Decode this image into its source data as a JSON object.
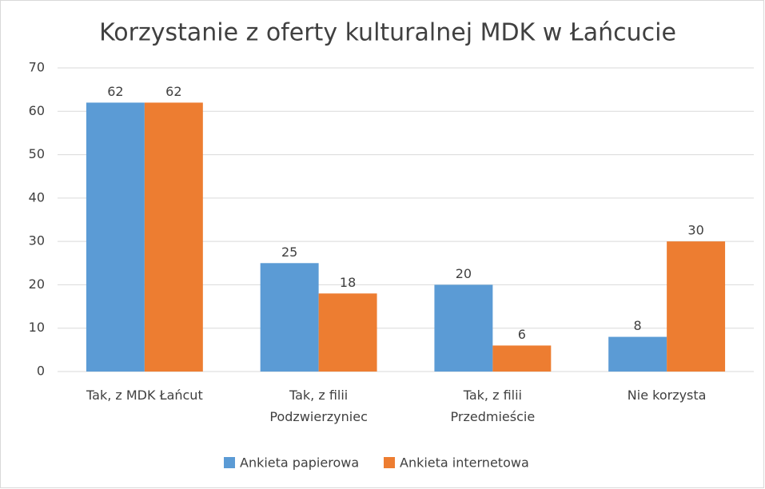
{
  "chart_data": {
    "type": "bar",
    "title": "Korzystanie z oferty kulturalnej MDK w Łańcucie",
    "categories": [
      "Tak, z MDK Łańcut",
      "Tak, z filii\nPodzwierzyniec",
      "Tak, z filii\nPrzedmieście",
      "Nie korzysta"
    ],
    "series": [
      {
        "name": "Ankieta papierowa",
        "color": "#5b9bd5",
        "values": [
          62,
          25,
          20,
          8
        ]
      },
      {
        "name": "Ankieta internetowa",
        "color": "#ed7d31",
        "values": [
          62,
          18,
          6,
          30
        ]
      }
    ],
    "ylim": [
      0,
      70
    ],
    "yticks": [
      0,
      10,
      20,
      30,
      40,
      50,
      60,
      70
    ],
    "grid": true,
    "legend": "bottom"
  }
}
